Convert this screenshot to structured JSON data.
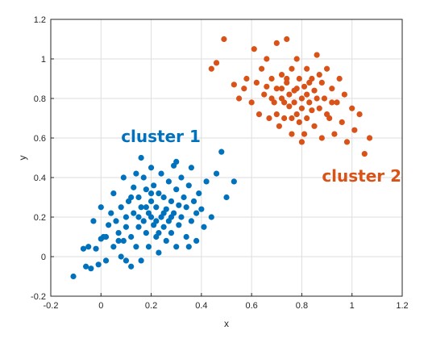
{
  "chart_data": {
    "type": "scatter",
    "xlabel": "x",
    "ylabel": "y",
    "xlim": [
      -0.2,
      1.2
    ],
    "ylim": [
      -0.2,
      1.2
    ],
    "xticks": [
      -0.2,
      0,
      0.2,
      0.4,
      0.6,
      0.8,
      1,
      1.2
    ],
    "yticks": [
      -0.2,
      0,
      0.2,
      0.4,
      0.6,
      0.8,
      1,
      1.2
    ],
    "xtick_labels": [
      "-0.2",
      "0",
      "0.2",
      "0.4",
      "0.6",
      "0.8",
      "1",
      "1.2"
    ],
    "ytick_labels": [
      "-0.2",
      "0",
      "0.2",
      "0.4",
      "0.6",
      "0.8",
      "1",
      "1.2"
    ],
    "grid": true,
    "series": [
      {
        "name": "cluster 1",
        "color": "#0072BD",
        "points": [
          [
            -0.11,
            -0.1
          ],
          [
            -0.07,
            0.04
          ],
          [
            -0.06,
            -0.05
          ],
          [
            -0.05,
            0.05
          ],
          [
            -0.04,
            -0.06
          ],
          [
            -0.03,
            0.18
          ],
          [
            -0.02,
            0.04
          ],
          [
            -0.01,
            -0.04
          ],
          [
            0.0,
            0.09
          ],
          [
            0.0,
            0.25
          ],
          [
            0.01,
            0.1
          ],
          [
            0.02,
            -0.02
          ],
          [
            0.03,
            0.16
          ],
          [
            0.04,
            0.22
          ],
          [
            0.05,
            0.05
          ],
          [
            0.05,
            0.32
          ],
          [
            0.06,
            0.18
          ],
          [
            0.07,
            0.12
          ],
          [
            0.08,
            0.0
          ],
          [
            0.08,
            0.25
          ],
          [
            0.09,
            0.08
          ],
          [
            0.09,
            0.4
          ],
          [
            0.1,
            0.2
          ],
          [
            0.1,
            0.15
          ],
          [
            0.11,
            0.28
          ],
          [
            0.12,
            -0.05
          ],
          [
            0.12,
            0.1
          ],
          [
            0.13,
            0.35
          ],
          [
            0.13,
            0.22
          ],
          [
            0.14,
            0.05
          ],
          [
            0.14,
            0.42
          ],
          [
            0.15,
            0.15
          ],
          [
            0.15,
            0.3
          ],
          [
            0.16,
            0.25
          ],
          [
            0.16,
            -0.02
          ],
          [
            0.17,
            0.18
          ],
          [
            0.17,
            0.4
          ],
          [
            0.18,
            0.12
          ],
          [
            0.18,
            0.34
          ],
          [
            0.19,
            0.22
          ],
          [
            0.19,
            0.05
          ],
          [
            0.2,
            0.28
          ],
          [
            0.2,
            0.45
          ],
          [
            0.21,
            0.16
          ],
          [
            0.21,
            0.36
          ],
          [
            0.22,
            0.1
          ],
          [
            0.22,
            0.25
          ],
          [
            0.23,
            0.32
          ],
          [
            0.23,
            0.02
          ],
          [
            0.24,
            0.2
          ],
          [
            0.24,
            0.42
          ],
          [
            0.25,
            0.15
          ],
          [
            0.25,
            0.3
          ],
          [
            0.26,
            0.24
          ],
          [
            0.26,
            0.08
          ],
          [
            0.27,
            0.38
          ],
          [
            0.27,
            0.18
          ],
          [
            0.28,
            0.28
          ],
          [
            0.28,
            0.12
          ],
          [
            0.29,
            0.46
          ],
          [
            0.29,
            0.22
          ],
          [
            0.3,
            0.34
          ],
          [
            0.3,
            0.05
          ],
          [
            0.31,
            0.26
          ],
          [
            0.31,
            0.16
          ],
          [
            0.32,
            0.4
          ],
          [
            0.32,
            0.2
          ],
          [
            0.33,
            0.3
          ],
          [
            0.34,
            0.1
          ],
          [
            0.34,
            0.25
          ],
          [
            0.35,
            0.36
          ],
          [
            0.36,
            0.18
          ],
          [
            0.36,
            0.45
          ],
          [
            0.37,
            0.28
          ],
          [
            0.38,
            0.22
          ],
          [
            0.38,
            0.08
          ],
          [
            0.39,
            0.32
          ],
          [
            0.4,
            0.24
          ],
          [
            0.41,
            0.15
          ],
          [
            0.42,
            0.38
          ],
          [
            0.44,
            0.2
          ],
          [
            0.46,
            0.42
          ],
          [
            0.48,
            0.53
          ],
          [
            0.5,
            0.3
          ],
          [
            0.53,
            0.38
          ],
          [
            0.2,
            0.2
          ],
          [
            0.22,
            0.18
          ],
          [
            0.18,
            0.25
          ],
          [
            0.25,
            0.22
          ],
          [
            0.15,
            0.2
          ],
          [
            0.2,
            0.32
          ],
          [
            0.23,
            0.12
          ],
          [
            0.28,
            0.2
          ],
          [
            0.12,
            0.3
          ],
          [
            0.07,
            0.08
          ],
          [
            0.02,
            0.1
          ],
          [
            0.1,
            -0.02
          ],
          [
            0.16,
            0.5
          ],
          [
            0.3,
            0.48
          ],
          [
            0.35,
            0.05
          ]
        ],
        "label_position": {
          "x": 0.08,
          "y": 0.58
        }
      },
      {
        "name": "cluster 2",
        "color": "#D95319",
        "points": [
          [
            0.44,
            0.95
          ],
          [
            0.46,
            0.98
          ],
          [
            0.49,
            1.1
          ],
          [
            0.53,
            0.87
          ],
          [
            0.55,
            0.8
          ],
          [
            0.57,
            0.85
          ],
          [
            0.58,
            0.9
          ],
          [
            0.6,
            0.78
          ],
          [
            0.61,
            1.05
          ],
          [
            0.62,
            0.88
          ],
          [
            0.63,
            0.72
          ],
          [
            0.64,
            0.95
          ],
          [
            0.65,
            0.82
          ],
          [
            0.66,
            1.0
          ],
          [
            0.67,
            0.7
          ],
          [
            0.68,
            0.9
          ],
          [
            0.69,
            0.78
          ],
          [
            0.7,
            0.85
          ],
          [
            0.7,
            1.08
          ],
          [
            0.71,
            0.66
          ],
          [
            0.72,
            0.92
          ],
          [
            0.72,
            0.8
          ],
          [
            0.73,
            0.7
          ],
          [
            0.74,
            1.1
          ],
          [
            0.74,
            0.88
          ],
          [
            0.75,
            0.76
          ],
          [
            0.76,
            0.95
          ],
          [
            0.76,
            0.62
          ],
          [
            0.77,
            0.84
          ],
          [
            0.78,
            1.0
          ],
          [
            0.78,
            0.72
          ],
          [
            0.79,
            0.9
          ],
          [
            0.8,
            0.8
          ],
          [
            0.8,
            0.58
          ],
          [
            0.81,
            0.86
          ],
          [
            0.82,
            0.95
          ],
          [
            0.82,
            0.7
          ],
          [
            0.83,
            0.78
          ],
          [
            0.84,
            0.9
          ],
          [
            0.85,
            0.66
          ],
          [
            0.85,
            0.84
          ],
          [
            0.86,
            1.02
          ],
          [
            0.87,
            0.75
          ],
          [
            0.88,
            0.88
          ],
          [
            0.88,
            0.6
          ],
          [
            0.89,
            0.8
          ],
          [
            0.9,
            0.95
          ],
          [
            0.91,
            0.7
          ],
          [
            0.92,
            0.85
          ],
          [
            0.93,
            0.62
          ],
          [
            0.94,
            0.78
          ],
          [
            0.95,
            0.9
          ],
          [
            0.96,
            0.68
          ],
          [
            0.97,
            0.82
          ],
          [
            0.98,
            0.58
          ],
          [
            1.0,
            0.75
          ],
          [
            1.01,
            0.64
          ],
          [
            1.03,
            0.72
          ],
          [
            1.05,
            0.52
          ],
          [
            1.07,
            0.6
          ],
          [
            0.75,
            0.82
          ],
          [
            0.78,
            0.85
          ],
          [
            0.8,
            0.75
          ],
          [
            0.72,
            0.85
          ],
          [
            0.83,
            0.88
          ],
          [
            0.77,
            0.78
          ],
          [
            0.7,
            0.72
          ],
          [
            0.86,
            0.8
          ],
          [
            0.74,
            0.9
          ],
          [
            0.82,
            0.82
          ],
          [
            0.68,
            0.8
          ],
          [
            0.9,
            0.72
          ],
          [
            0.76,
            0.7
          ],
          [
            0.79,
            0.68
          ],
          [
            0.73,
            0.78
          ],
          [
            0.84,
            0.74
          ],
          [
            0.87,
            0.92
          ],
          [
            0.66,
            0.86
          ],
          [
            0.92,
            0.78
          ],
          [
            0.81,
            0.62
          ]
        ],
        "label_position": {
          "x": 0.88,
          "y": 0.38
        }
      }
    ]
  }
}
